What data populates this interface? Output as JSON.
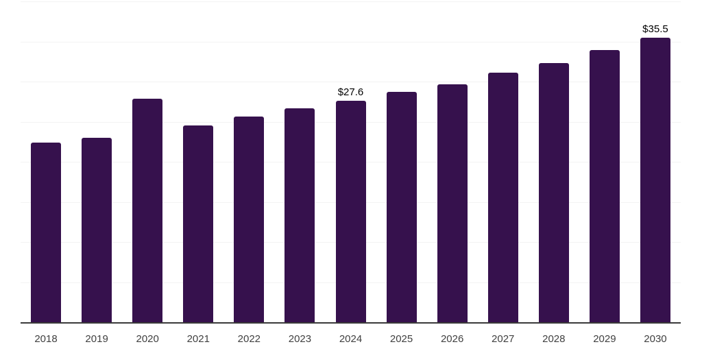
{
  "chart_data": {
    "type": "bar",
    "title": "",
    "xlabel": "",
    "ylabel": "",
    "categories": [
      "2018",
      "2019",
      "2020",
      "2021",
      "2022",
      "2023",
      "2024",
      "2025",
      "2026",
      "2027",
      "2028",
      "2029",
      "2030"
    ],
    "values": [
      22.4,
      23.0,
      27.9,
      24.5,
      25.6,
      26.7,
      27.6,
      28.7,
      29.7,
      31.1,
      32.3,
      33.9,
      35.5
    ],
    "value_prefix": "$",
    "annotations": [
      {
        "category": "2024",
        "text": "$27.6"
      },
      {
        "category": "2030",
        "text": "$35.5"
      }
    ],
    "ylim": [
      0,
      40
    ],
    "gridline_step": 5,
    "grid": true,
    "legend": "none",
    "colors": {
      "bar": "#36114d",
      "gridline": "#f3f3f3",
      "axis_line": "#3a3a3a",
      "tick_label": "#404040",
      "data_label": "#000000",
      "background": "#ffffff"
    }
  }
}
